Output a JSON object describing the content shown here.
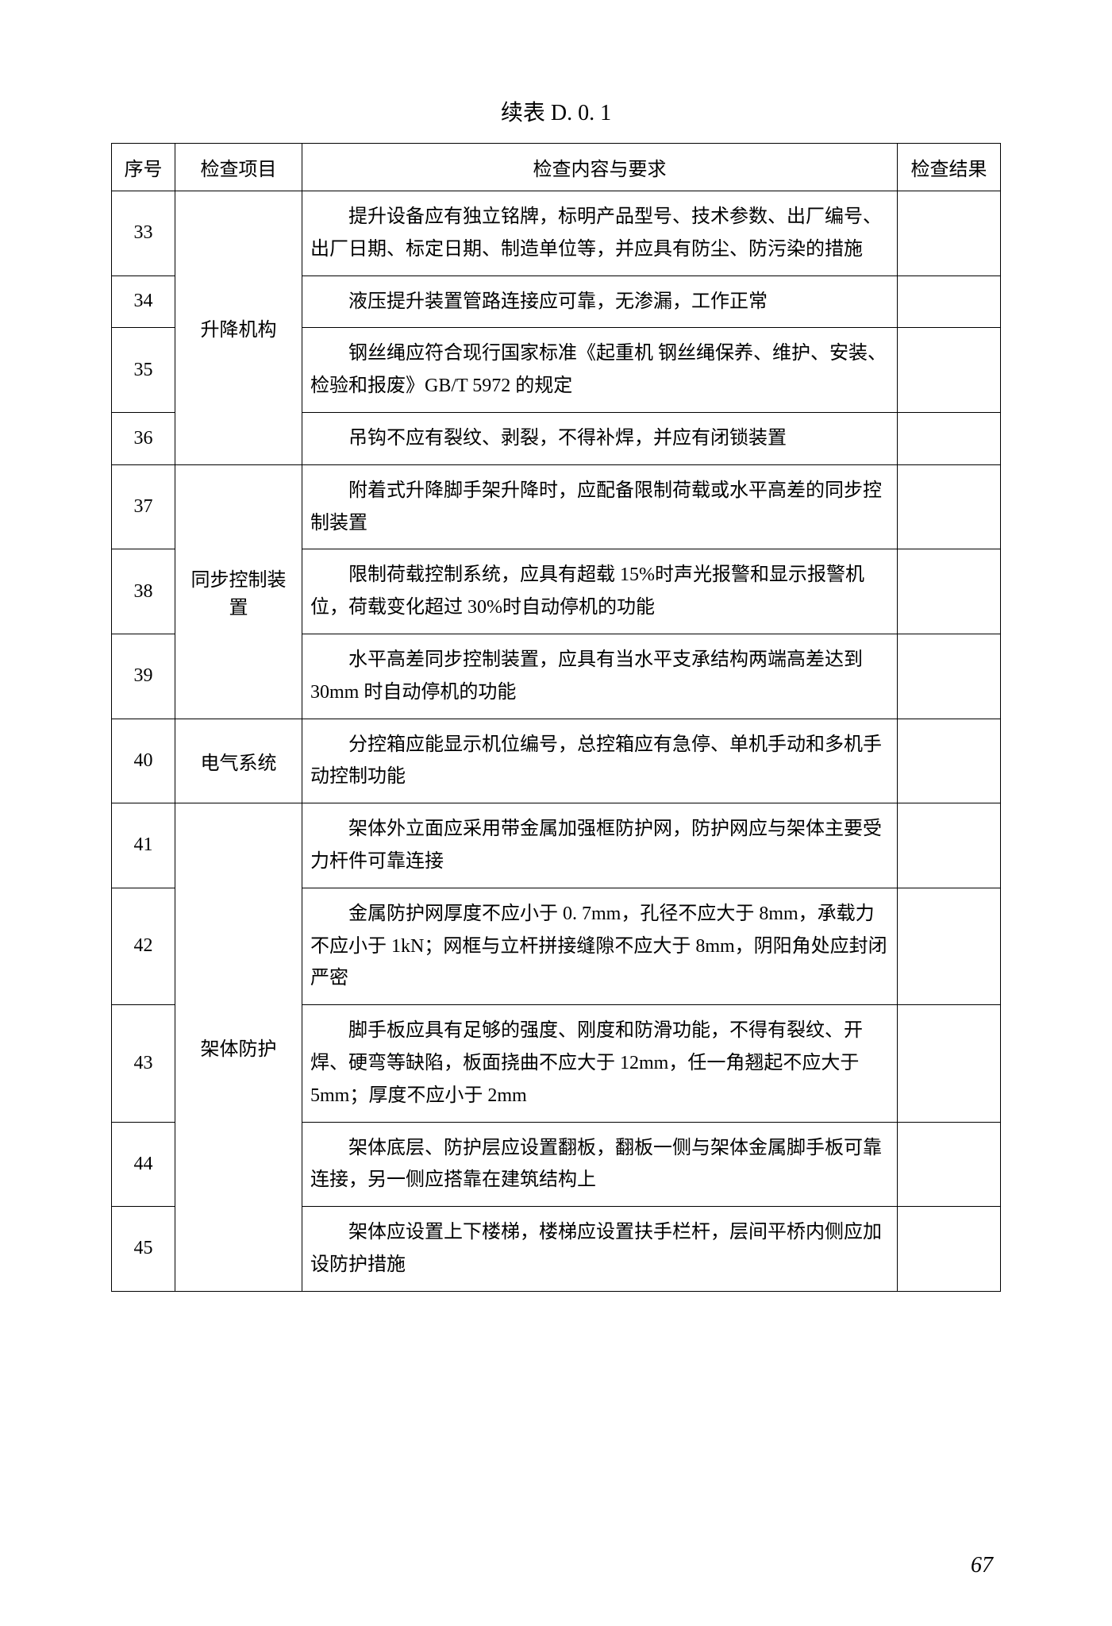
{
  "title": "续表 D. 0. 1",
  "headers": {
    "seq": "序号",
    "item": "检查项目",
    "content": "检查内容与要求",
    "result": "检查结果"
  },
  "rows": [
    {
      "seq": "33",
      "item": "升降机构",
      "itemSpan": 4,
      "content": "提升设备应有独立铭牌，标明产品型号、技术参数、出厂编号、出厂日期、标定日期、制造单位等，并应具有防尘、防污染的措施"
    },
    {
      "seq": "34",
      "content": "液压提升装置管路连接应可靠，无渗漏，工作正常"
    },
    {
      "seq": "35",
      "content": "钢丝绳应符合现行国家标准《起重机 钢丝绳保养、维护、安装、检验和报废》GB/T 5972 的规定"
    },
    {
      "seq": "36",
      "content": "吊钩不应有裂纹、剥裂，不得补焊，并应有闭锁装置"
    },
    {
      "seq": "37",
      "item": "同步控制装置",
      "itemSpan": 3,
      "content": "附着式升降脚手架升降时，应配备限制荷载或水平高差的同步控制装置"
    },
    {
      "seq": "38",
      "content": "限制荷载控制系统，应具有超载 15%时声光报警和显示报警机位，荷载变化超过 30%时自动停机的功能"
    },
    {
      "seq": "39",
      "content": "水平高差同步控制装置，应具有当水平支承结构两端高差达到 30mm 时自动停机的功能"
    },
    {
      "seq": "40",
      "item": "电气系统",
      "itemSpan": 1,
      "content": "分控箱应能显示机位编号，总控箱应有急停、单机手动和多机手动控制功能"
    },
    {
      "seq": "41",
      "item": "架体防护",
      "itemSpan": 5,
      "content": "架体外立面应采用带金属加强框防护网，防护网应与架体主要受力杆件可靠连接"
    },
    {
      "seq": "42",
      "content": "金属防护网厚度不应小于 0. 7mm，孔径不应大于 8mm，承载力不应小于 1kN；网框与立杆拼接缝隙不应大于 8mm，阴阳角处应封闭严密"
    },
    {
      "seq": "43",
      "content": "脚手板应具有足够的强度、刚度和防滑功能，不得有裂纹、开焊、硬弯等缺陷，板面挠曲不应大于 12mm，任一角翘起不应大于 5mm；厚度不应小于 2mm"
    },
    {
      "seq": "44",
      "content": "架体底层、防护层应设置翻板，翻板一侧与架体金属脚手板可靠连接，另一侧应搭靠在建筑结构上"
    },
    {
      "seq": "45",
      "content": "架体应设置上下楼梯，楼梯应设置扶手栏杆，层间平桥内侧应加设防护措施"
    }
  ],
  "pageNumber": "67"
}
